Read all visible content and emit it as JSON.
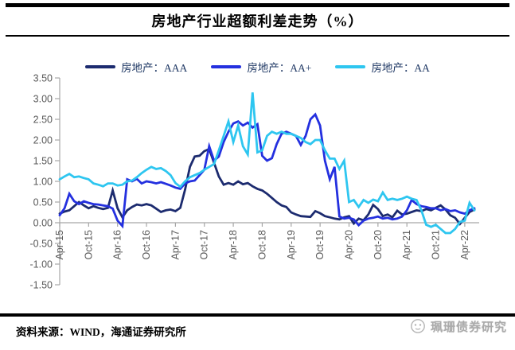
{
  "title": "房地产行业超额利差走势（%）",
  "legend": [
    {
      "label": "房地产：AAA",
      "color": "#1C2B6F"
    },
    {
      "label": "房地产：AA+",
      "color": "#2430DF"
    },
    {
      "label": "房地产：AA",
      "color": "#2EC6F0"
    }
  ],
  "footer": {
    "source": "资料来源：WIND，海通证券研究所",
    "watermark": "珮珊债券研究"
  },
  "colors": {
    "axis": "#A6A6A6",
    "tick_text": "#595959"
  },
  "chart_data": {
    "type": "line",
    "title": "房地产行业超额利差走势（%）",
    "xlabel": "",
    "ylabel": "",
    "ylim": [
      -1.5,
      3.5
    ],
    "grid": false,
    "legend_position": "top",
    "y_ticks": [
      "3.50",
      "3.00",
      "2.50",
      "2.00",
      "1.50",
      "1.00",
      "0.50",
      "0.00",
      "-0.50",
      "-1.00",
      "-1.50"
    ],
    "x_tick_every": 6,
    "x": [
      "Apr-15",
      "May-15",
      "Jun-15",
      "Jul-15",
      "Aug-15",
      "Sep-15",
      "Oct-15",
      "Nov-15",
      "Dec-15",
      "Jan-16",
      "Feb-16",
      "Mar-16",
      "Apr-16",
      "May-16",
      "Jun-16",
      "Jul-16",
      "Aug-16",
      "Sep-16",
      "Oct-16",
      "Nov-16",
      "Dec-16",
      "Jan-17",
      "Feb-17",
      "Mar-17",
      "Apr-17",
      "May-17",
      "Jun-17",
      "Jul-17",
      "Aug-17",
      "Sep-17",
      "Oct-17",
      "Nov-17",
      "Dec-17",
      "Jan-18",
      "Feb-18",
      "Mar-18",
      "Apr-18",
      "May-18",
      "Jun-18",
      "Jul-18",
      "Aug-18",
      "Sep-18",
      "Oct-18",
      "Nov-18",
      "Dec-18",
      "Jan-19",
      "Feb-19",
      "Mar-19",
      "Apr-19",
      "May-19",
      "Jun-19",
      "Jul-19",
      "Aug-19",
      "Sep-19",
      "Oct-19",
      "Nov-19",
      "Dec-19",
      "Jan-20",
      "Feb-20",
      "Mar-20",
      "Apr-20",
      "May-20",
      "Jun-20",
      "Jul-20",
      "Aug-20",
      "Sep-20",
      "Oct-20",
      "Nov-20",
      "Dec-20",
      "Jan-21",
      "Feb-21",
      "Mar-21",
      "Apr-21",
      "May-21",
      "Jun-21",
      "Jul-21",
      "Aug-21",
      "Sep-21",
      "Oct-21",
      "Nov-21",
      "Dec-21",
      "Jan-22",
      "Feb-22",
      "Mar-22",
      "Apr-22",
      "May-22",
      "Jun-22"
    ],
    "series": [
      {
        "name": "房地产：AAA",
        "color": "#1C2B6F",
        "values": [
          0.22,
          0.27,
          0.3,
          0.4,
          0.5,
          0.42,
          0.35,
          0.4,
          0.36,
          0.33,
          0.36,
          0.78,
          0.35,
          0.13,
          0.3,
          0.38,
          0.44,
          0.42,
          0.45,
          0.42,
          0.34,
          0.26,
          0.3,
          0.32,
          0.28,
          0.36,
          0.8,
          1.35,
          1.6,
          1.62,
          1.73,
          1.78,
          1.45,
          1.12,
          0.92,
          0.96,
          0.92,
          1.0,
          0.93,
          0.96,
          0.88,
          0.82,
          0.78,
          0.7,
          0.6,
          0.5,
          0.42,
          0.38,
          0.25,
          0.2,
          0.16,
          0.15,
          0.14,
          0.28,
          0.23,
          0.16,
          0.13,
          0.1,
          0.08,
          0.13,
          0.16,
          -0.02,
          0.1,
          0.06,
          0.2,
          0.43,
          0.33,
          0.16,
          0.2,
          0.13,
          0.29,
          0.2,
          0.22,
          0.26,
          0.3,
          0.28,
          0.33,
          0.3,
          0.36,
          0.42,
          0.32,
          0.18,
          0.12,
          -0.03,
          0.12,
          0.26,
          0.32
        ]
      },
      {
        "name": "房地产：AA+",
        "color": "#2430DF",
        "values": [
          0.18,
          0.35,
          0.7,
          0.52,
          0.45,
          0.52,
          0.48,
          0.45,
          0.44,
          0.42,
          0.4,
          0.34,
          0.05,
          -0.08,
          1.05,
          1.0,
          1.06,
          0.95,
          1.0,
          0.98,
          0.95,
          0.98,
          0.94,
          0.9,
          0.85,
          0.82,
          0.95,
          1.0,
          1.02,
          1.15,
          1.28,
          1.85,
          1.5,
          1.6,
          1.95,
          2.2,
          2.4,
          2.45,
          2.35,
          2.42,
          2.3,
          2.38,
          1.62,
          1.5,
          1.56,
          1.9,
          2.15,
          2.2,
          2.15,
          2.1,
          1.88,
          2.1,
          2.5,
          2.62,
          2.35,
          1.5,
          1.05,
          1.35,
          0.15,
          0.1,
          0.12,
          0.08,
          -0.06,
          0.05,
          0.1,
          0.12,
          0.15,
          0.1,
          0.12,
          0.08,
          0.1,
          0.15,
          0.3,
          0.55,
          0.45,
          0.4,
          0.38,
          0.35,
          0.35,
          0.3,
          0.33,
          0.28,
          0.3,
          0.25,
          0.22,
          0.3,
          0.35
        ]
      },
      {
        "name": "房地产：AA",
        "color": "#2EC6F0",
        "values": [
          1.05,
          1.12,
          1.18,
          1.1,
          1.12,
          1.08,
          1.05,
          0.95,
          0.92,
          0.88,
          0.95,
          0.95,
          0.9,
          0.92,
          1.0,
          1.02,
          1.1,
          1.2,
          1.28,
          1.35,
          1.3,
          1.32,
          1.25,
          1.15,
          0.96,
          0.87,
          1.0,
          1.1,
          1.15,
          1.2,
          1.28,
          1.35,
          1.42,
          1.75,
          2.1,
          2.45,
          1.95,
          2.35,
          1.85,
          1.65,
          3.15,
          1.7,
          1.75,
          2.1,
          2.2,
          2.15,
          2.2,
          2.15,
          2.15,
          2.1,
          2.05,
          1.95,
          1.9,
          2.0,
          2.0,
          1.75,
          1.55,
          1.55,
          1.3,
          1.5,
          0.5,
          0.55,
          0.38,
          0.55,
          0.48,
          0.56,
          0.52,
          0.73,
          0.55,
          0.58,
          0.55,
          0.58,
          0.63,
          0.58,
          0.55,
          0.3,
          -0.05,
          -0.1,
          -0.05,
          -0.15,
          -0.25,
          -0.25,
          -0.15,
          0.02,
          0.05,
          0.48,
          0.3
        ]
      }
    ]
  }
}
